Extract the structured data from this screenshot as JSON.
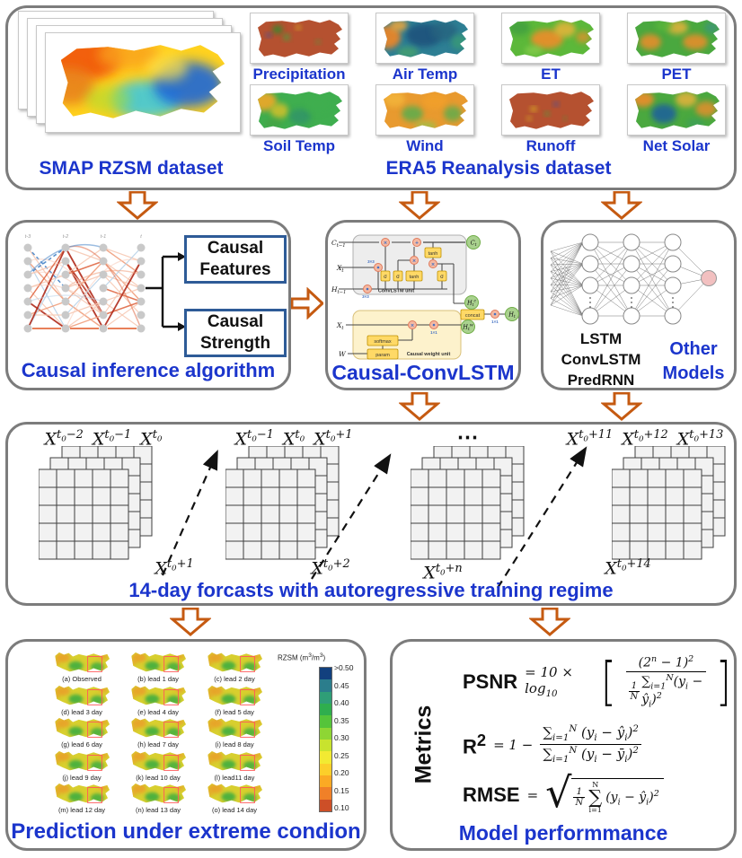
{
  "colors": {
    "accent_blue": "#1b35cc",
    "arrow_orange": "#c55a11",
    "panel_border": "#7c7c7c",
    "box_border_blue": "#2e5b97"
  },
  "top": {
    "smap_label": "SMAP RZSM dataset",
    "era5_label": "ERA5 Reanalysis dataset",
    "era5_maps": [
      {
        "label": "Precipitation",
        "scheme": "precip"
      },
      {
        "label": "Air Temp",
        "scheme": "airtemp"
      },
      {
        "label": "ET",
        "scheme": "et"
      },
      {
        "label": "PET",
        "scheme": "pet"
      },
      {
        "label": "Soil Temp",
        "scheme": "soiltemp"
      },
      {
        "label": "Wind",
        "scheme": "wind"
      },
      {
        "label": "Runoff",
        "scheme": "runoff"
      },
      {
        "label": "Net Solar",
        "scheme": "netsolar"
      }
    ]
  },
  "causal_box": {
    "time_labels": [
      "t-3",
      "t-2",
      "t-1",
      "t"
    ],
    "feature_lines": [
      "Causal",
      "Features"
    ],
    "strength_lines": [
      "Causal",
      "Strength"
    ],
    "caption": "Causal inference algorithm"
  },
  "convlstm_box": {
    "caption": "Causal-ConvLSTM",
    "unit1_label": "ConvLSTM unit",
    "unit2_label": "Causal weight unit",
    "io": {
      "c_prev": "C_{t−1}",
      "x_t": "X_{t}",
      "h_prev": "H_{t−1}",
      "c_t": "C_{t}",
      "h_c": "H_{t}^{c}",
      "h_w": "H_{t}^{w}",
      "h_t": "H_{t}",
      "x_t2": "X_{t}",
      "w": "W"
    },
    "ops": {
      "sigma": "σ",
      "tanh": "tanh",
      "softmax": "softmax",
      "param": "param",
      "concat": "concat"
    },
    "kernels": {
      "k33": "3×3",
      "k11": "1×1"
    }
  },
  "other_box": {
    "models": [
      "LSTM",
      "ConvLSTM",
      "PredRNN"
    ],
    "label_lines": [
      "Other",
      "Models"
    ]
  },
  "forecast": {
    "groups": [
      {
        "top": [
          "X^{t_{0}−2}",
          "X^{t_{0}−1}",
          "X^{t_{0}}"
        ],
        "bottom": "X^{t_{0}+1}",
        "dots": false
      },
      {
        "top": [
          "X^{t_{0}−1}",
          "X^{t_{0}}",
          "X^{t_{0}+1}"
        ],
        "bottom": "X^{t_{0}+2}",
        "dots": false
      },
      {
        "top": [
          "⋯"
        ],
        "bottom": "X^{t_{0}+n}",
        "dots": true
      },
      {
        "top": [
          "X^{t_{0}+11}",
          "X^{t_{0}+12}",
          "X^{t_{0}+13}"
        ],
        "bottom": "X^{t_{0}+14}",
        "dots": false
      }
    ],
    "caption": "14-day forcasts with autoregressive training regime"
  },
  "prediction": {
    "tiles": [
      "(a) Observed",
      "(b) lead 1 day",
      "(c) lead 2 day",
      "(d) lead 3 day",
      "(e) lead 4 day",
      "(f) lead 5 day",
      "(g) lead 6 day",
      "(h) lead 7 day",
      "(i) lead 8 day",
      "(j) lead 9 day",
      "(k) lead 10 day",
      "(l) lead11 day",
      "(m) lead 12 day",
      "(n) lead 13 day",
      "(o) lead 14 day"
    ],
    "colorbar_title": "RZSM (m^{3}/m^{3})",
    "colorbar_ticks": [
      ">0.50",
      "0.45",
      "0.40",
      "0.35",
      "0.30",
      "0.25",
      "0.20",
      "0.15",
      "0.10"
    ],
    "colorbar_colors": [
      "#12407e",
      "#2b7d8c",
      "#2f9e77",
      "#2fae4e",
      "#55c43a",
      "#8ed634",
      "#c8e32e",
      "#f2ea32",
      "#fccf2a",
      "#fbaa24",
      "#f08028",
      "#cd4f27"
    ],
    "caption": "Prediction under extreme condion"
  },
  "metrics": {
    "side_label": "Metrics",
    "caption": "Model performmance",
    "psnr": {
      "name": "PSNR",
      "lead": "= 10 × log_{10}",
      "num": "(2^{n} − 1)^{2}",
      "den_n": "1",
      "den_d": "N",
      "den_rest": "∑_{i=1}^{N}(y_{i} − ŷ_{i})^{2}"
    },
    "r2": {
      "name": "R^{2}",
      "lead": "= 1 −",
      "num": "∑_{i=1}^{N} (y_{i} − ŷ_{i})^{2}",
      "den": "∑_{i=1}^{N} (y_{i} − ȳ_{i})^{2}"
    },
    "rmse": {
      "name": "RMSE",
      "lead": "=",
      "frac_n": "1",
      "frac_d": "N",
      "sum_top": "N",
      "sum_mid": "∑",
      "sum_bot": "i=1",
      "body": "(y_{i} − ŷ_{i})^{2}"
    }
  }
}
